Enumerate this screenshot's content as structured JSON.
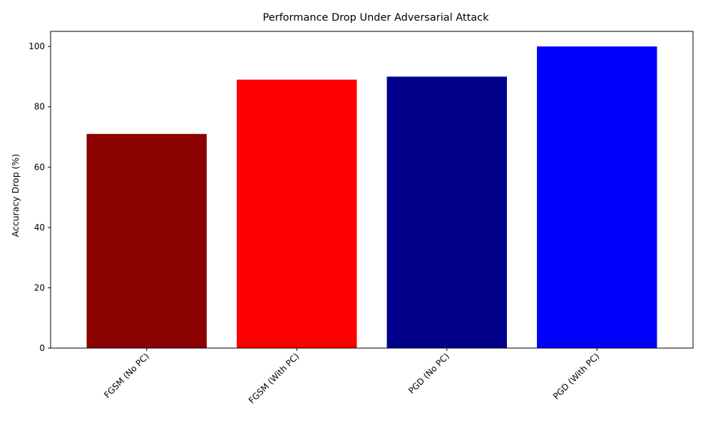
{
  "chart_data": {
    "type": "bar",
    "title": "Performance Drop Under Adversarial Attack",
    "xlabel": "",
    "ylabel": "Accuracy Drop (%)",
    "categories": [
      "FGSM (No PC)",
      "FGSM (With PC)",
      "PGD (No PC)",
      "PGD (With PC)"
    ],
    "values": [
      71,
      89,
      90,
      100
    ],
    "colors": [
      "#8b0000",
      "#ff0000",
      "#00008b",
      "#0000ff"
    ],
    "ylim": [
      0,
      105
    ],
    "yticks": [
      0,
      20,
      40,
      60,
      80,
      100
    ],
    "grid": false,
    "legend": "none"
  }
}
